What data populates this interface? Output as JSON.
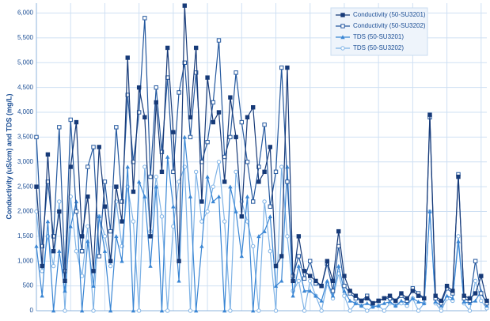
{
  "chart_data": {
    "type": "line",
    "y_label": "Conductivity (uS/cm) and TDS (mg/L)",
    "categories": [
      null,
      null,
      null,
      null,
      null,
      null,
      null,
      null,
      null,
      null,
      null,
      null,
      null,
      null,
      null,
      null,
      null,
      null,
      null,
      null,
      null,
      null,
      null,
      null,
      null,
      null,
      null,
      null,
      null,
      null,
      null,
      null,
      null,
      null,
      null,
      null,
      null,
      null,
      null,
      null,
      null,
      null,
      null,
      null,
      null,
      null,
      null,
      null,
      null,
      null,
      null,
      null,
      null,
      null,
      null,
      null,
      null,
      null,
      null,
      null,
      null,
      null,
      null,
      null,
      null,
      null,
      null,
      null,
      null,
      null,
      null,
      null,
      null,
      null,
      null,
      null,
      null,
      null,
      null,
      null
    ],
    "ylim": [
      0,
      6200
    ],
    "yticks": [
      0,
      500,
      {
        "value": 1000,
        "label": "1,000"
      },
      {
        "value": 1500,
        "label": "1,500"
      },
      {
        "value": 2000,
        "label": "2,000"
      },
      {
        "value": 2500,
        "label": "2,500"
      },
      {
        "value": 3000,
        "label": "3,000"
      },
      {
        "value": 3500,
        "label": "3,500"
      },
      {
        "value": 4000,
        "label": "4,000"
      },
      {
        "value": 4500,
        "label": "4,500"
      },
      {
        "value": 5000,
        "label": "5,000"
      },
      {
        "value": 5500,
        "label": "5,500"
      },
      {
        "value": 6000,
        "label": "6,000"
      }
    ],
    "grid": true,
    "legend": "top-right",
    "series": [
      {
        "name": "Conductivity (50-SU3201)",
        "color": "#173a78",
        "marker": "square",
        "values": [
          2500,
          900,
          3150,
          1200,
          2000,
          600,
          2900,
          3800,
          1500,
          2300,
          800,
          3300,
          2100,
          1000,
          2500,
          1800,
          5100,
          2400,
          4500,
          3900,
          1500,
          4200,
          2800,
          5300,
          3600,
          1000,
          6150,
          3900,
          5300,
          2200,
          4700,
          3800,
          4000,
          2600,
          4300,
          3500,
          1900,
          3900,
          4100,
          2600,
          2800,
          3300,
          900,
          1100,
          4900,
          600,
          1500,
          800,
          700,
          600,
          500,
          1000,
          600,
          1600,
          700,
          400,
          300,
          200,
          250,
          150,
          200,
          250,
          300,
          200,
          350,
          250,
          400,
          300,
          250,
          3950,
          300,
          200,
          500,
          400,
          2700,
          300,
          250,
          350,
          700,
          200
        ]
      },
      {
        "name": "Conductivity (50-SU3202)",
        "color": "#24589e",
        "marker": "open-square",
        "values": [
          3500,
          1300,
          2600,
          1500,
          3700,
          800,
          3850,
          2000,
          1200,
          2900,
          3300,
          1100,
          2600,
          1600,
          3700,
          2200,
          4350,
          3000,
          4000,
          5900,
          2700,
          4500,
          3200,
          4700,
          2800,
          4400,
          5000,
          3500,
          4800,
          3000,
          3400,
          4200,
          5450,
          3100,
          3500,
          4800,
          3800,
          3000,
          2200,
          2900,
          3750,
          2100,
          2800,
          4900,
          2600,
          700,
          1100,
          650,
          1000,
          550,
          500,
          950,
          400,
          1300,
          500,
          350,
          250,
          200,
          300,
          150,
          200,
          250,
          250,
          200,
          300,
          200,
          450,
          350,
          250,
          3900,
          250,
          150,
          450,
          350,
          2750,
          250,
          200,
          1000,
          350,
          150
        ]
      },
      {
        "name": "TDS (50-SU3201)",
        "color": "#3a86d4",
        "marker": "triangle",
        "values": [
          1300,
          300,
          1800,
          0,
          1200,
          400,
          1700,
          2200,
          0,
          1400,
          500,
          1900,
          1200,
          0,
          1500,
          1000,
          2900,
          0,
          2600,
          2300,
          900,
          2500,
          0,
          3100,
          2100,
          600,
          3500,
          2300,
          0,
          1300,
          2700,
          2200,
          2300,
          0,
          2500,
          2000,
          1100,
          2300,
          0,
          1500,
          1600,
          1900,
          500,
          600,
          2900,
          300,
          900,
          400,
          400,
          300,
          200,
          600,
          300,
          900,
          400,
          200,
          150,
          100,
          150,
          80,
          100,
          150,
          180,
          100,
          200,
          150,
          250,
          180,
          150,
          2000,
          180,
          100,
          300,
          250,
          1400,
          180,
          150,
          200,
          400,
          100
        ]
      },
      {
        "name": "TDS (50-SU3202)",
        "color": "#7fb3e6",
        "marker": "open-circle",
        "values": [
          2000,
          800,
          1500,
          900,
          2200,
          0,
          2300,
          1200,
          700,
          1700,
          0,
          1900,
          1500,
          900,
          2200,
          1300,
          2500,
          1800,
          0,
          2900,
          1600,
          2700,
          1900,
          0,
          1700,
          2600,
          2900,
          0,
          2800,
          1800,
          2000,
          2500,
          3000,
          1800,
          0,
          2800,
          2200,
          1800,
          1300,
          0,
          2200,
          1200,
          0,
          2900,
          1500,
          400,
          600,
          0,
          600,
          300,
          0,
          550,
          250,
          750,
          300,
          0,
          150,
          100,
          0,
          80,
          100,
          0,
          150,
          100,
          150,
          100,
          250,
          0,
          150,
          2000,
          150,
          0,
          250,
          200,
          1500,
          150,
          0,
          600,
          200,
          50
        ]
      }
    ]
  }
}
